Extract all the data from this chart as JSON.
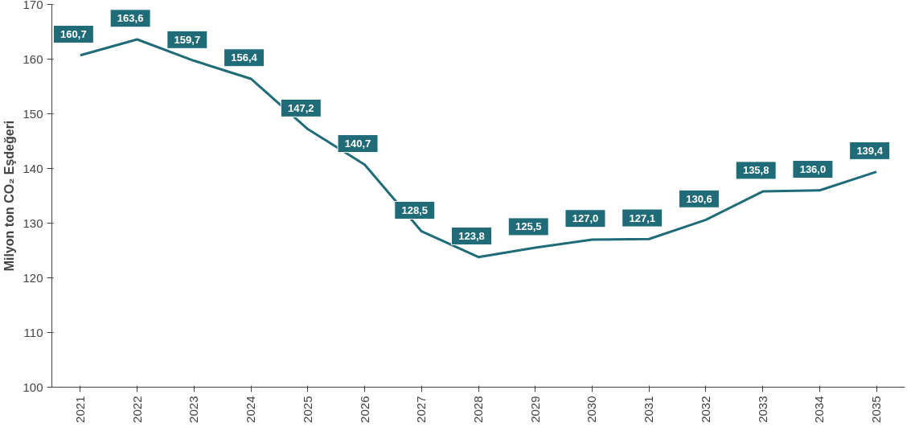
{
  "chart_data": {
    "type": "line",
    "ylabel": "Milyon ton CO₂ Eşdeğeri",
    "categories": [
      "2021",
      "2022",
      "2023",
      "2024",
      "2025",
      "2026",
      "2027",
      "2028",
      "2029",
      "2030",
      "2031",
      "2032",
      "2033",
      "2034",
      "2035"
    ],
    "series": [
      {
        "color": "#1f6b78",
        "values": [
          160.7,
          163.6,
          159.7,
          156.4,
          147.2,
          140.7,
          128.5,
          123.8,
          125.5,
          127.0,
          127.1,
          130.6,
          135.8,
          136.0,
          139.4
        ],
        "value_labels": [
          "160,7",
          "163,6",
          "159,7",
          "156,4",
          "147,2",
          "140,7",
          "128,5",
          "123,8",
          "125,5",
          "127,0",
          "127,1",
          "130,6",
          "135,8",
          "136,0",
          "139,4"
        ]
      }
    ],
    "ylim": [
      100,
      170
    ],
    "yticks": [
      100,
      110,
      120,
      130,
      140,
      150,
      160,
      170
    ],
    "grid": false,
    "marker": "none",
    "line_style": "solid"
  }
}
